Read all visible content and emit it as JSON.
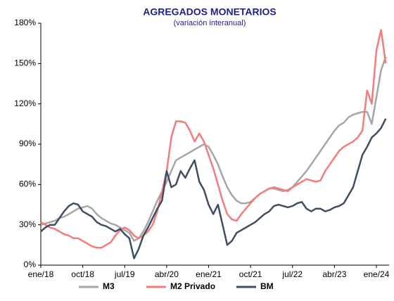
{
  "chart_data": {
    "type": "line",
    "title": "AGREGADOS MONETARIOS",
    "subtitle": "(variación interanual)",
    "categories": [
      "ene/18",
      null,
      null,
      null,
      null,
      null,
      null,
      null,
      null,
      "oct/18",
      null,
      null,
      null,
      null,
      null,
      null,
      null,
      null,
      "jul/19",
      null,
      null,
      null,
      null,
      null,
      null,
      null,
      null,
      "abr/20",
      null,
      null,
      null,
      null,
      null,
      null,
      null,
      null,
      "ene/21",
      null,
      null,
      null,
      null,
      null,
      null,
      null,
      null,
      "oct/21",
      null,
      null,
      null,
      null,
      null,
      null,
      null,
      null,
      "jul/22",
      null,
      null,
      null,
      null,
      null,
      null,
      null,
      null,
      "abr/23",
      null,
      null,
      null,
      null,
      null,
      null,
      null,
      null,
      "ene/24",
      null,
      null
    ],
    "series": [
      {
        "name": "M3",
        "color": "#a6a6a6",
        "values": [
          30,
          31,
          32,
          33,
          35,
          36,
          38,
          40,
          42,
          43,
          44,
          42,
          38,
          35,
          33,
          31,
          30,
          28,
          26,
          24,
          18,
          20,
          25,
          32,
          40,
          48,
          55,
          62,
          70,
          78,
          80,
          82,
          84,
          86,
          88,
          90,
          88,
          82,
          75,
          66,
          58,
          52,
          48,
          46,
          46,
          47,
          50,
          53,
          55,
          57,
          57,
          56,
          55,
          56,
          58,
          62,
          66,
          70,
          75,
          80,
          85,
          90,
          95,
          100,
          104,
          106,
          110,
          112,
          113,
          114,
          114,
          105,
          125,
          145,
          155
        ]
      },
      {
        "name": "M2 Privado",
        "color": "#f47c7c",
        "values": [
          32,
          30,
          28,
          27,
          25,
          23,
          22,
          20,
          20,
          18,
          16,
          14,
          13,
          13,
          15,
          17,
          22,
          26,
          28,
          26,
          22,
          20,
          22,
          25,
          30,
          40,
          55,
          70,
          95,
          107,
          107,
          106,
          100,
          92,
          98,
          92,
          82,
          72,
          60,
          48,
          38,
          34,
          33,
          38,
          42,
          46,
          50,
          53,
          55,
          57,
          58,
          57,
          56,
          55,
          58,
          60,
          62,
          64,
          63,
          62,
          63,
          70,
          75,
          80,
          85,
          88,
          90,
          92,
          95,
          100,
          130,
          120,
          160,
          175,
          150
        ]
      },
      {
        "name": "BM",
        "color": "#3f4e63",
        "values": [
          25,
          28,
          30,
          30,
          35,
          40,
          44,
          46,
          45,
          40,
          38,
          36,
          32,
          30,
          29,
          27,
          25,
          27,
          23,
          20,
          5,
          12,
          22,
          28,
          35,
          42,
          48,
          70,
          58,
          60,
          70,
          65,
          72,
          78,
          62,
          56,
          45,
          38,
          45,
          30,
          15,
          18,
          24,
          26,
          28,
          30,
          32,
          35,
          38,
          40,
          44,
          45,
          44,
          43,
          44,
          46,
          47,
          42,
          40,
          42,
          42,
          40,
          41,
          43,
          44,
          46,
          52,
          58,
          70,
          82,
          88,
          95,
          98,
          102,
          109
        ]
      }
    ],
    "ylim": [
      0,
      180
    ],
    "yticks": [
      {
        "value": 0,
        "label": "0%"
      },
      {
        "value": 30,
        "label": "30%"
      },
      {
        "value": 60,
        "label": "60%"
      },
      {
        "value": 90,
        "label": "90%"
      },
      {
        "value": 120,
        "label": "120%"
      },
      {
        "value": 150,
        "label": "150%"
      },
      {
        "value": 180,
        "label": "180%"
      }
    ],
    "grid": false,
    "legend": "bottom"
  }
}
